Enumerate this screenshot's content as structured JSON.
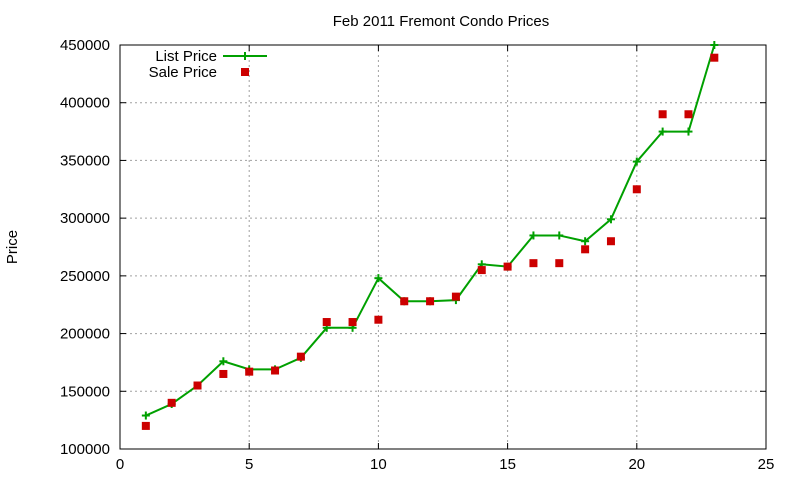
{
  "chart_data": {
    "type": "line",
    "title": "Feb 2011 Fremont Condo Prices",
    "xlabel": "",
    "ylabel": "Price",
    "xlim": [
      0,
      25
    ],
    "ylim": [
      100000,
      450000
    ],
    "xticks": [
      0,
      5,
      10,
      15,
      20,
      25
    ],
    "yticks": [
      100000,
      150000,
      200000,
      250000,
      300000,
      350000,
      400000,
      450000
    ],
    "grid": true,
    "legend_position": "top-left",
    "series": [
      {
        "name": "List Price",
        "style": "line-with-plus-markers",
        "color": "#00a000",
        "x": [
          1,
          2,
          3,
          4,
          5,
          6,
          7,
          8,
          9,
          10,
          11,
          12,
          13,
          14,
          15,
          16,
          17,
          18,
          19,
          20,
          21,
          22,
          23
        ],
        "y": [
          129000,
          139000,
          155000,
          176000,
          169000,
          169000,
          179000,
          205000,
          205000,
          248000,
          228000,
          228000,
          229000,
          260000,
          258000,
          285000,
          285000,
          280000,
          299000,
          349000,
          375000,
          375000,
          450000
        ]
      },
      {
        "name": "Sale Price",
        "style": "square-markers",
        "color": "#cc0000",
        "x": [
          1,
          2,
          3,
          4,
          5,
          6,
          7,
          8,
          9,
          10,
          11,
          12,
          13,
          14,
          15,
          16,
          17,
          18,
          19,
          20,
          21,
          22,
          23
        ],
        "y": [
          120000,
          140000,
          155000,
          165000,
          167000,
          168000,
          180000,
          210000,
          210000,
          212000,
          228000,
          228000,
          232000,
          255000,
          258000,
          261000,
          261000,
          273000,
          280000,
          325000,
          390000,
          390000,
          439000
        ]
      }
    ]
  }
}
